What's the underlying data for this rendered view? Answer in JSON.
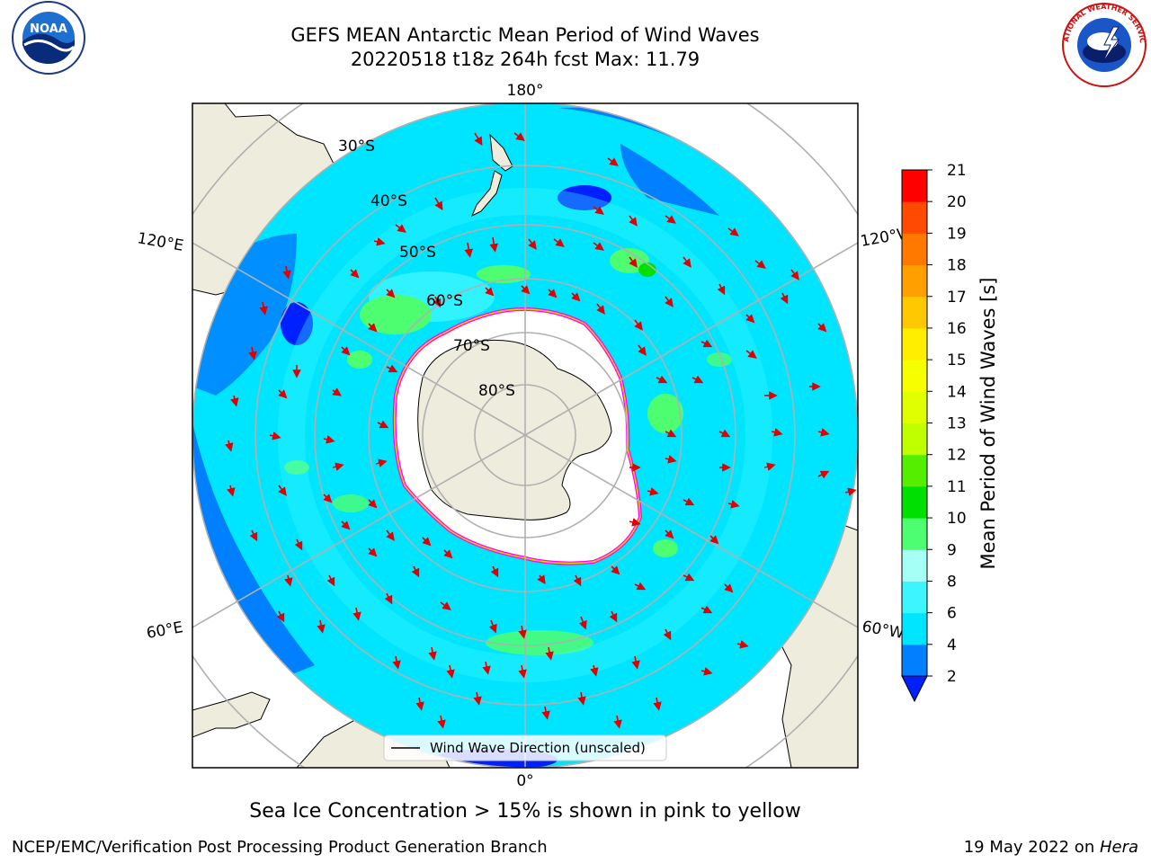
{
  "header": {
    "title_line1": "GEFS MEAN Antarctic Mean Period of Wind Waves",
    "title_line2": "20220518 t18z 264h fcst   Max: 11.79"
  },
  "logos": {
    "left": {
      "name": "noaa-logo",
      "text": "NOAA"
    },
    "right": {
      "name": "nws-logo",
      "text": "NATIONAL WEATHER SERVICE"
    }
  },
  "map": {
    "longitude_labels": {
      "top": "180°",
      "bottom": "0°",
      "upper_left": "120°E",
      "upper_right": "120°W",
      "lower_left": "60°E",
      "lower_right": "60°W"
    },
    "latitude_labels": [
      "30°S",
      "40°S",
      "50°S",
      "60°S",
      "70°S",
      "80°S"
    ],
    "legend_label": "Wind Wave Direction (unscaled)"
  },
  "colorbar": {
    "label": "Mean Period of Wind Waves [s]",
    "ticks": [
      "2",
      "4",
      "6",
      "8",
      "9",
      "10",
      "11",
      "12",
      "13",
      "14",
      "15",
      "16",
      "17",
      "18",
      "19",
      "20",
      "21"
    ],
    "colors": [
      "#0080ff",
      "#00e5ff",
      "#3df5ff",
      "#a5fff5",
      "#4dff70",
      "#00e000",
      "#55ee00",
      "#c0ff00",
      "#e0ff00",
      "#f5ff00",
      "#ffee00",
      "#ffc800",
      "#ffa000",
      "#ff7800",
      "#ff4a00",
      "#ff0000"
    ],
    "under_color": "#0020ff"
  },
  "subtitle": "Sea Ice Concentration > 15% is shown in pink to yellow",
  "footer": {
    "left": "NCEP/EMC/Verification Post Processing Product Generation Branch",
    "right_prefix": "19 May 2022 on ",
    "right_host": "Hera"
  }
}
